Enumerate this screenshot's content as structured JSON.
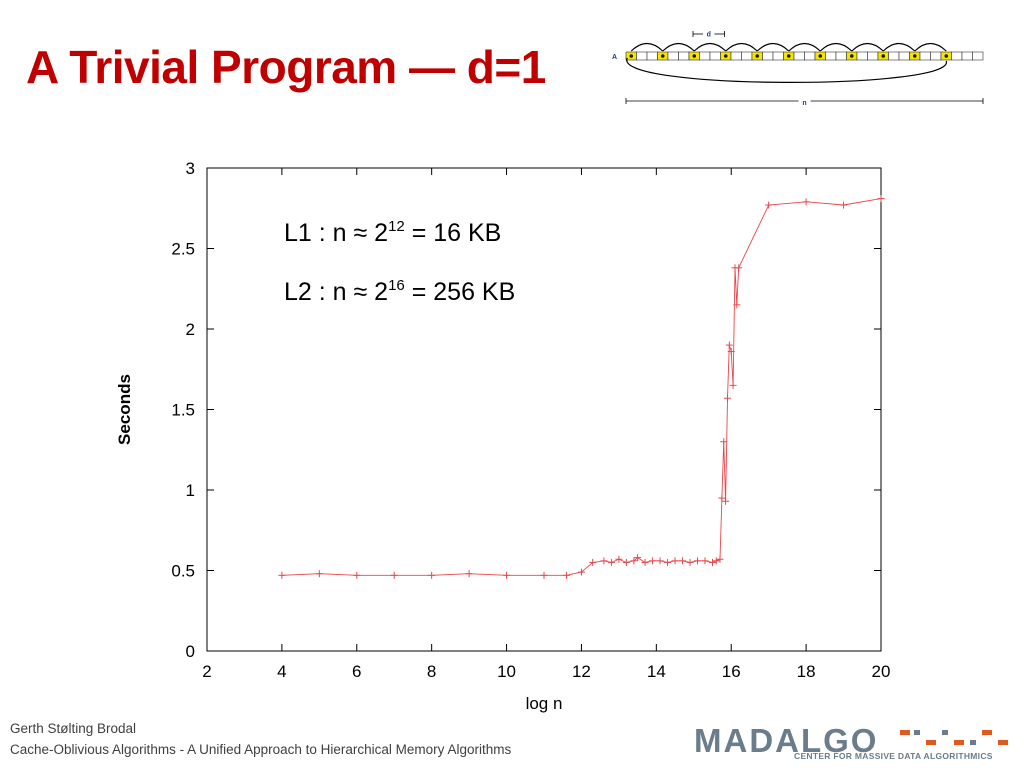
{
  "slide": {
    "title": "A Trivial Program — d=1",
    "annotations": [
      {
        "prefix": "L1 : n ≈  2",
        "exp": "12",
        "suffix": " = 16 KB"
      },
      {
        "prefix": "L2 : n ≈  2",
        "exp": "16",
        "suffix": " = 256 KB"
      }
    ],
    "footer_author": "Gerth Stølting Brodal",
    "footer_course": "Cache-Oblivious Algorithms - A Unified Approach to Hierarchical Memory Algorithms",
    "logo": {
      "word": "MADALGO",
      "sub": "CENTER FOR MASSIVE DATA ALGORITHMICS",
      "colors": [
        "#6b7c8c",
        "#e05a1e"
      ]
    }
  },
  "diagram": {
    "array_label": "A",
    "d_label": "d",
    "n_label": "n",
    "cell_count": 34,
    "highlight_every": 3,
    "colors": {
      "cell_fill": "#f5e600",
      "dot": "#1a1a1a",
      "arc": "#000000",
      "label": "#1f3a8a"
    }
  },
  "chart_data": {
    "type": "line",
    "xlabel": "log n",
    "ylabel": "Seconds",
    "xlim": [
      2,
      20
    ],
    "ylim": [
      0,
      3
    ],
    "xticks": [
      2,
      4,
      6,
      8,
      10,
      12,
      14,
      16,
      18,
      20
    ],
    "yticks": [
      0,
      0.5,
      1,
      1.5,
      2,
      2.5,
      3
    ],
    "grid": false,
    "marker": "+",
    "color": "#e8474b",
    "series": [
      {
        "x": [
          4,
          5,
          6,
          7,
          8,
          9,
          10,
          11,
          11.6,
          12,
          12.3,
          12.6,
          12.8,
          13,
          13.2,
          13.4,
          13.5,
          13.7,
          13.9,
          14.1,
          14.3,
          14.5,
          14.7,
          14.9,
          15.1,
          15.3,
          15.5,
          15.6,
          15.7,
          15.75,
          15.8,
          15.85,
          15.9,
          15.95,
          16,
          16.05,
          16.1,
          16.15,
          16.2,
          17,
          18,
          19,
          20
        ],
        "y": [
          0.47,
          0.48,
          0.47,
          0.47,
          0.47,
          0.48,
          0.47,
          0.47,
          0.47,
          0.49,
          0.55,
          0.56,
          0.55,
          0.57,
          0.55,
          0.56,
          0.58,
          0.55,
          0.56,
          0.56,
          0.55,
          0.56,
          0.56,
          0.55,
          0.56,
          0.56,
          0.55,
          0.56,
          0.57,
          0.95,
          1.3,
          0.93,
          1.57,
          1.9,
          1.86,
          1.65,
          2.38,
          2.15,
          2.38,
          2.77,
          2.79,
          2.77,
          2.81
        ]
      }
    ]
  }
}
